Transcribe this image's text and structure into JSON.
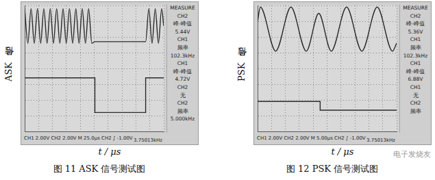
{
  "chart_data": [
    {
      "type": "line",
      "title": "图 11  ASK 信号测试图",
      "y_label": "ASK信号",
      "x_label": "t / μs",
      "xlim": [
        0,
        10
      ],
      "xticks": [
        0,
        1,
        2,
        3,
        4,
        5,
        6,
        7,
        8,
        9,
        10
      ],
      "ylim": [
        -4,
        4
      ],
      "yticks": [
        -4,
        -3,
        -2,
        -1,
        0,
        1,
        2,
        3,
        4
      ],
      "grid": true,
      "tick_labels": false,
      "series": [
        {
          "name": "CH1",
          "color": "#2b2b2b",
          "line_style": "smooth",
          "x": [
            0,
            0.23,
            0.46,
            0.69,
            0.92,
            1.15,
            1.38,
            1.61,
            1.84,
            2.07,
            2.3,
            2.53,
            2.76,
            2.99,
            3.22,
            3.45,
            3.68,
            3.91,
            4.14,
            4.37,
            4.6,
            4.83,
            5.05,
            8.7,
            8.93,
            9.16,
            9.39,
            9.62,
            9.85,
            10
          ],
          "values": [
            3.8,
            1.6,
            3.8,
            1.6,
            3.8,
            1.6,
            3.8,
            1.6,
            3.8,
            1.6,
            3.8,
            1.6,
            3.8,
            1.6,
            3.8,
            1.6,
            3.8,
            1.6,
            3.8,
            1.6,
            3.8,
            1.6,
            1.7,
            1.7,
            3.8,
            1.6,
            3.8,
            1.6,
            3.8,
            2.7
          ]
        },
        {
          "name": "CH2",
          "color": "#2b2b2b",
          "line_style": "solid",
          "x": [
            0,
            5.05,
            5.05,
            8.7,
            8.7,
            10
          ],
          "values": [
            -0.6,
            -0.6,
            -2.8,
            -2.8,
            -0.6,
            -0.6
          ]
        }
      ],
      "status_bar": [
        "CH1 2.00V",
        "CH2 2.00V",
        "M 25.0μs",
        "CH2 ∫ -1.00V"
      ],
      "counter": "3.75013kHz",
      "measure": {
        "title": "MEASURE",
        "items": [
          {
            "source": "CH2",
            "item": "峰-峰值",
            "reading": "5.44V"
          },
          {
            "source": "CH1",
            "item": "频率",
            "reading": "102.3kHz"
          },
          {
            "source": "CH1",
            "item": "峰-峰值",
            "reading": "4.72V"
          },
          {
            "source": "CH2",
            "item": "无"
          },
          {
            "source": "CH2",
            "item": "频率",
            "reading": "5.000kHz"
          }
        ]
      }
    },
    {
      "type": "line",
      "title": "图 12  PSK 信号测试图",
      "y_label": "PSK信号",
      "x_label": "t / μs",
      "xlim": [
        0,
        10
      ],
      "xticks": [
        0,
        1,
        2,
        3,
        4,
        5,
        6,
        7,
        8,
        9,
        10
      ],
      "ylim": [
        -4,
        4
      ],
      "yticks": [
        -4,
        -3,
        -2,
        -1,
        0,
        1,
        2,
        3,
        4
      ],
      "grid": true,
      "tick_labels": false,
      "series": [
        {
          "name": "CH1",
          "color": "#2b2b2b",
          "line_style": "smooth",
          "x": [
            0,
            0.2,
            1.3,
            2.4,
            3.5,
            4.4,
            5.3,
            6.4,
            7.5,
            8.6,
            9.7,
            10
          ],
          "values": [
            3.0,
            3.9,
            1.1,
            3.9,
            1.1,
            3.5,
            1.1,
            3.9,
            1.1,
            3.9,
            1.1,
            1.6
          ]
        },
        {
          "name": "CH2",
          "color": "#2b2b2b",
          "line_style": "solid",
          "x": [
            0,
            4.5,
            4.5,
            10
          ],
          "values": [
            -2.1,
            -2.1,
            -2.65,
            -2.65
          ]
        }
      ],
      "status_bar": [
        "CH1 2.00V",
        "CH2 2.00V",
        "M 5.00μs",
        "CH2 ∫ -1.00V"
      ],
      "counter": "3.75013kHz",
      "measure": {
        "title": "MEASURE",
        "items": [
          {
            "source": "CH2",
            "item": "峰-峰值",
            "reading": "5.36V"
          },
          {
            "source": "CH1",
            "item": "频率",
            "reading": "102.3kHz"
          },
          {
            "source": "CH1",
            "item": "峰-峰值",
            "reading": "6.88V"
          },
          {
            "source": "CH1",
            "item": "无"
          },
          {
            "source": "CH2",
            "item": "频率"
          }
        ]
      }
    }
  ],
  "watermark": "电子发烧友"
}
